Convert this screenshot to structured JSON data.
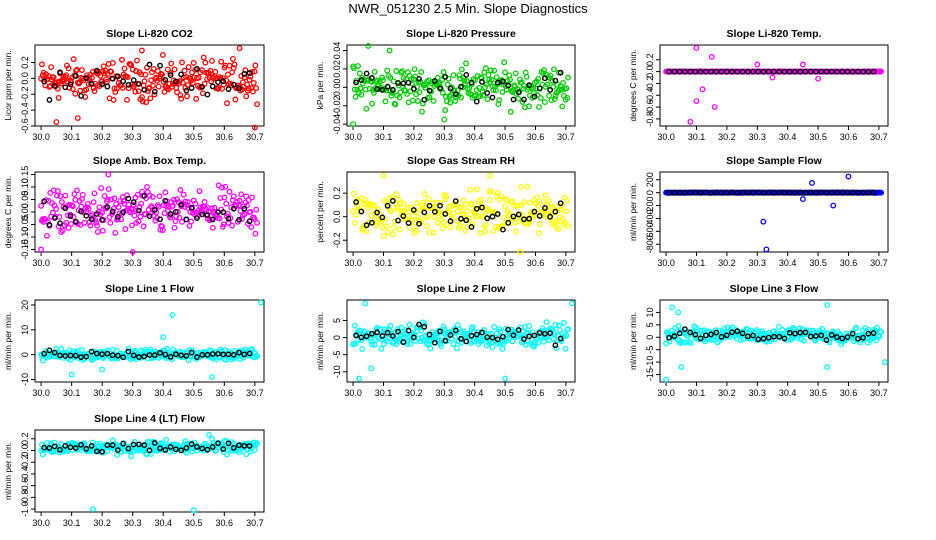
{
  "page_title": "NWR_051230  2.5 Min. Slope Diagnostics",
  "chart_data": [
    {
      "type": "scatter",
      "title": "Slope Li-820 CO2",
      "ylabel": "Licor ppm per min.",
      "xlim": [
        29.98,
        30.73
      ],
      "ylim": [
        -0.6,
        0.42
      ],
      "xticks": [
        "30.0",
        "30.1",
        "30.2",
        "30.3",
        "30.4",
        "30.5",
        "30.6",
        "30.7"
      ],
      "yticks": [
        "-0.6",
        "-0.4",
        "-0.2",
        "0.0",
        "0.2"
      ],
      "color": "#ff0000",
      "band": [
        -0.35,
        0.3
      ],
      "outliers": [
        [
          30.12,
          -0.5
        ],
        [
          30.7,
          -0.62
        ],
        [
          30.05,
          -0.55
        ],
        [
          30.65,
          0.38
        ],
        [
          30.33,
          0.35
        ]
      ]
    },
    {
      "type": "scatter",
      "title": "Slope Li-820 Pressure",
      "ylabel": "kPa per min.",
      "xlim": [
        29.98,
        30.73
      ],
      "ylim": [
        -0.042,
        0.046
      ],
      "xticks": [
        "30.0",
        "30.1",
        "30.2",
        "30.3",
        "30.4",
        "30.5",
        "30.6",
        "30.7"
      ],
      "yticks": [
        "-0.04",
        "-0.02",
        "0.00",
        "0.02",
        "0.04"
      ],
      "color": "#00cc00",
      "band": [
        -0.028,
        0.03
      ],
      "outliers": [
        [
          30.05,
          0.045
        ],
        [
          30.0,
          -0.04
        ],
        [
          30.12,
          0.04
        ],
        [
          30.3,
          -0.035
        ]
      ]
    },
    {
      "type": "scatter",
      "title": "Slope Li-820 Temp.",
      "ylabel": "degrees C per min.",
      "xlim": [
        29.98,
        30.73
      ],
      "ylim": [
        -0.92,
        0.45
      ],
      "xticks": [
        "30.0",
        "30.1",
        "30.2",
        "30.3",
        "30.4",
        "30.5",
        "30.6",
        "30.7"
      ],
      "yticks": [
        "-0.8",
        "-0.6",
        "-0.4",
        "-0.2",
        "0.0",
        "0.2"
      ],
      "color": "#ff00ff",
      "band": [
        0.0,
        0.0
      ],
      "outliers": [
        [
          30.08,
          -0.85
        ],
        [
          30.1,
          -0.5
        ],
        [
          30.1,
          0.4
        ],
        [
          30.15,
          0.25
        ],
        [
          30.12,
          -0.3
        ],
        [
          30.16,
          -0.6
        ],
        [
          30.3,
          0.12
        ],
        [
          30.35,
          -0.1
        ],
        [
          30.45,
          0.12
        ],
        [
          30.5,
          -0.12
        ]
      ],
      "flat": true
    },
    {
      "type": "scatter",
      "title": "Slope Amb. Box Temp.",
      "ylabel": "degrees C per min.",
      "xlim": [
        29.98,
        30.73
      ],
      "ylim": [
        -0.16,
        0.16
      ],
      "xticks": [
        "30.0",
        "30.1",
        "30.2",
        "30.3",
        "30.4",
        "30.5",
        "30.6",
        "30.7"
      ],
      "yticks": [
        "-0.15",
        "-0.10",
        "-0.05",
        "0.00",
        "0.05",
        "0.10",
        "0.15"
      ],
      "color": "#ff00ff",
      "band": [
        -0.12,
        0.12
      ],
      "outliers": [
        [
          30.0,
          -0.15
        ],
        [
          30.22,
          0.15
        ],
        [
          30.3,
          -0.16
        ]
      ]
    },
    {
      "type": "scatter",
      "title": "Slope Gas Stream RH",
      "ylabel": "percent per min.",
      "xlim": [
        29.98,
        30.73
      ],
      "ylim": [
        -0.3,
        0.38
      ],
      "xticks": [
        "30.0",
        "30.1",
        "30.2",
        "30.3",
        "30.4",
        "30.5",
        "30.6",
        "30.7"
      ],
      "yticks": [
        "-0.2",
        "0.0",
        "0.2"
      ],
      "color": "#ffff00",
      "band": [
        -0.22,
        0.28
      ],
      "outliers": [
        [
          30.1,
          0.35
        ],
        [
          30.45,
          0.35
        ],
        [
          30.55,
          -0.3
        ]
      ]
    },
    {
      "type": "scatter",
      "title": "Slope Sample Flow",
      "ylabel": "ml/min per min.",
      "xlim": [
        29.98,
        30.73
      ],
      "ylim": [
        -920,
        320
      ],
      "xticks": [
        "30.0",
        "30.1",
        "30.2",
        "30.3",
        "30.4",
        "30.5",
        "30.6",
        "30.7"
      ],
      "yticks": [
        "-800",
        "-600",
        "-400",
        "-200",
        "0",
        "200"
      ],
      "color": "#0000ff",
      "band": [
        0,
        0
      ],
      "outliers": [
        [
          30.33,
          -880
        ],
        [
          30.32,
          -450
        ],
        [
          30.6,
          250
        ],
        [
          30.48,
          150
        ],
        [
          30.55,
          -200
        ],
        [
          30.45,
          -100
        ]
      ],
      "flat": true
    },
    {
      "type": "scatter",
      "title": "Slope Line 1 Flow",
      "ylabel": "ml/min per min.",
      "xlim": [
        29.98,
        30.73
      ],
      "ylim": [
        -11,
        22
      ],
      "xticks": [
        "30.0",
        "30.1",
        "30.2",
        "30.3",
        "30.4",
        "30.5",
        "30.6",
        "30.7"
      ],
      "yticks": [
        "-10",
        "0",
        "10",
        "20"
      ],
      "color": "#00ffff",
      "band": [
        -3,
        3
      ],
      "outliers": [
        [
          30.72,
          21
        ],
        [
          30.43,
          16
        ],
        [
          30.1,
          -8
        ],
        [
          30.4,
          7
        ],
        [
          30.56,
          -9
        ],
        [
          30.2,
          -6
        ]
      ]
    },
    {
      "type": "scatter",
      "title": "Slope Line 2 Flow",
      "ylabel": "ml/min per min.",
      "xlim": [
        29.98,
        30.73
      ],
      "ylim": [
        -13,
        11
      ],
      "xticks": [
        "30.0",
        "30.1",
        "30.2",
        "30.3",
        "30.4",
        "30.5",
        "30.6",
        "30.7"
      ],
      "yticks": [
        "-10",
        "-5",
        "0",
        "5"
      ],
      "color": "#00ffff",
      "band": [
        -4,
        5
      ],
      "outliers": [
        [
          30.04,
          10
        ],
        [
          30.72,
          10
        ],
        [
          30.06,
          -9
        ],
        [
          30.5,
          -12
        ],
        [
          30.02,
          -12
        ]
      ]
    },
    {
      "type": "scatter",
      "title": "Slope Line 3 Flow",
      "ylabel": "ml/min per min.",
      "xlim": [
        29.98,
        30.73
      ],
      "ylim": [
        -18,
        15
      ],
      "xticks": [
        "30.0",
        "30.1",
        "30.2",
        "30.3",
        "30.4",
        "30.5",
        "30.6",
        "30.7"
      ],
      "yticks": [
        "-15",
        "-10",
        "-5",
        "0",
        "5",
        "10"
      ],
      "color": "#00ffff",
      "band": [
        -3,
        5
      ],
      "outliers": [
        [
          30.0,
          -17
        ],
        [
          30.05,
          -12
        ],
        [
          30.72,
          -10
        ],
        [
          30.53,
          -12
        ],
        [
          30.02,
          12
        ],
        [
          30.04,
          10
        ],
        [
          30.53,
          13
        ]
      ]
    },
    {
      "type": "scatter",
      "title": "Slope Line 4 (LT) Flow",
      "ylabel": "ml/min per min.",
      "xlim": [
        29.98,
        30.73
      ],
      "ylim": [
        -1.05,
        0.35
      ],
      "xticks": [
        "30.0",
        "30.1",
        "30.2",
        "30.3",
        "30.4",
        "30.5",
        "30.6",
        "30.7"
      ],
      "yticks": [
        "-1.0",
        "-0.8",
        "-0.6",
        "-0.4",
        "-0.2",
        "0.0",
        "0.2"
      ],
      "color": "#00ffff",
      "band": [
        -0.1,
        0.2
      ],
      "outliers": [
        [
          30.17,
          -1.0
        ],
        [
          30.5,
          -1.02
        ],
        [
          30.55,
          0.27
        ]
      ]
    }
  ]
}
